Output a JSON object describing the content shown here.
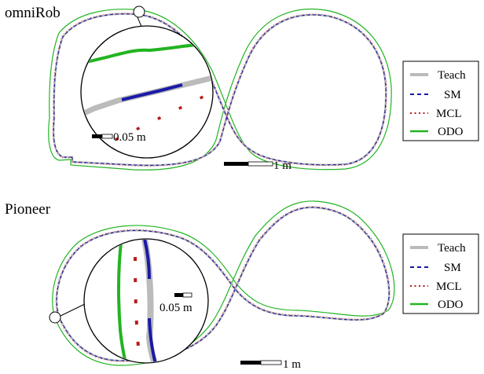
{
  "chart_data": [
    {
      "type": "line",
      "title": "omniRob",
      "legend": {
        "placement": "right",
        "entries": [
          {
            "name": "Teach",
            "color": "#bbbbbb",
            "style": "solid-thick"
          },
          {
            "name": "SM",
            "color": "#1a1aa6",
            "style": "dashed"
          },
          {
            "name": "MCL",
            "color": "#b81c1c",
            "style": "dotted"
          },
          {
            "name": "ODO",
            "color": "#22b422",
            "style": "solid"
          }
        ]
      },
      "scale_bar": "1 m",
      "inset": {
        "scale_bar": "0.05 m",
        "shape": "circle",
        "magnifies": "top-left corner of trajectory"
      },
      "series": [
        {
          "name": "Teach",
          "shape": "figure-eight loop"
        },
        {
          "name": "SM",
          "shape": "figure-eight loop"
        },
        {
          "name": "MCL",
          "shape": "figure-eight loop"
        },
        {
          "name": "ODO",
          "shape": "figure-eight loop, slightly offset outward"
        }
      ]
    },
    {
      "type": "line",
      "title": "Pioneer",
      "legend": {
        "placement": "right",
        "entries": [
          {
            "name": "Teach",
            "color": "#bbbbbb",
            "style": "solid-thick"
          },
          {
            "name": "SM",
            "color": "#1a1aa6",
            "style": "dashed"
          },
          {
            "name": "MCL",
            "color": "#b81c1c",
            "style": "dotted"
          },
          {
            "name": "ODO",
            "color": "#22b422",
            "style": "solid"
          }
        ]
      },
      "scale_bar": "1 m",
      "inset": {
        "scale_bar": "0.05 m",
        "shape": "circle",
        "magnifies": "left edge of trajectory"
      },
      "series": [
        {
          "name": "Teach",
          "shape": "figure-eight loop"
        },
        {
          "name": "SM",
          "shape": "figure-eight loop"
        },
        {
          "name": "MCL",
          "shape": "figure-eight loop"
        },
        {
          "name": "ODO",
          "shape": "figure-eight loop, slightly offset outward"
        }
      ]
    }
  ]
}
